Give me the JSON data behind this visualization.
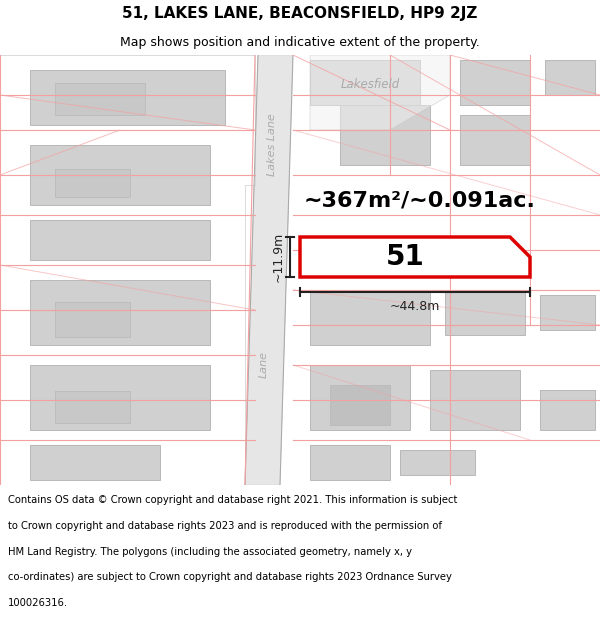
{
  "title": "51, LAKES LANE, BEACONSFIELD, HP9 2JZ",
  "subtitle": "Map shows position and indicative extent of the property.",
  "area_text": "~367m²/~0.091ac.",
  "width_text": "~44.8m",
  "height_text": "~11.9m",
  "number_text": "51",
  "road_label_top": "Lakes Lane",
  "road_label_bottom": "Lane",
  "lakesfield_label": "Lakesfield",
  "footer_lines": [
    "Contains OS data © Crown copyright and database right 2021. This information is subject",
    "to Crown copyright and database rights 2023 and is reproduced with the permission of",
    "HM Land Registry. The polygons (including the associated geometry, namely x, y",
    "co-ordinates) are subject to Crown copyright and database rights 2023 Ordnance Survey",
    "100026316."
  ],
  "bg_color": "#ffffff",
  "map_bg": "#f9f9f9",
  "road_fill": "#e6e6e6",
  "building_fill": "#d0d0d0",
  "building_edge": "#b8b8b8",
  "plot_outline_color": "#dd0000",
  "road_line_color": "#f5a0a0",
  "parcel_line_color": "#f0b0b0",
  "dim_line_color": "#222222",
  "road_label_color": "#aaaaaa",
  "title_fontsize": 11,
  "subtitle_fontsize": 9,
  "area_fontsize": 16,
  "number_fontsize": 20,
  "dim_fontsize": 9,
  "footer_fontsize": 7.2
}
